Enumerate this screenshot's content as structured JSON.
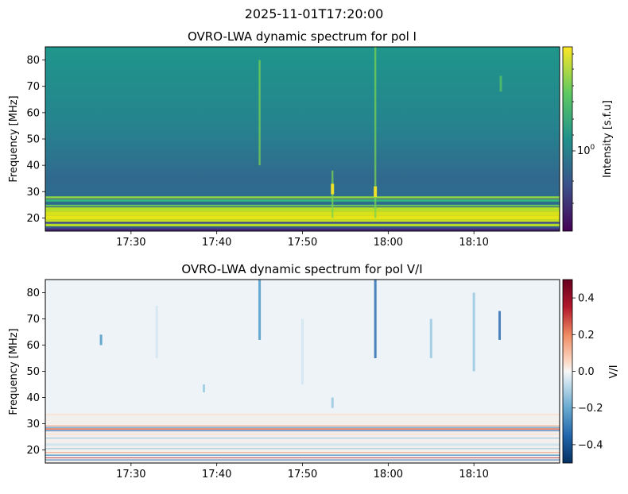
{
  "figure_title": "2025-11-01T17:20:00",
  "chart_data": [
    {
      "type": "heatmap",
      "title": "OVRO-LWA dynamic spectrum for pol I",
      "xlabel": "",
      "ylabel": "Frequency [MHz]",
      "x_range": [
        "17:20:00",
        "18:20:00"
      ],
      "x_ticks": [
        "17:30",
        "17:40",
        "17:50",
        "18:00",
        "18:10"
      ],
      "ylim": [
        15,
        85
      ],
      "y_ticks": [
        "20",
        "30",
        "40",
        "50",
        "60",
        "70",
        "80"
      ],
      "colorbar": {
        "label": "Intensity [s.f.u]",
        "scale": "log",
        "colormap": "viridis",
        "ticks": [
          "10^0"
        ]
      },
      "features": {
        "bright_bands_mhz": [
          [
            15,
            28
          ]
        ],
        "bursts": [
          {
            "time": "17:53:30",
            "freq_range_mhz": [
              20,
              38
            ]
          },
          {
            "time": "17:58:30",
            "freq_range_mhz": [
              20,
              85
            ]
          },
          {
            "time": "17:45:00",
            "freq_range_mhz": [
              40,
              80
            ]
          }
        ]
      }
    },
    {
      "type": "heatmap",
      "title": "OVRO-LWA dynamic spectrum for pol V/I",
      "xlabel": "",
      "ylabel": "Frequency [MHz]",
      "x_range": [
        "17:20:00",
        "18:20:00"
      ],
      "x_ticks": [
        "17:30",
        "17:40",
        "17:50",
        "18:00",
        "18:10"
      ],
      "ylim": [
        15,
        85
      ],
      "y_ticks": [
        "20",
        "30",
        "40",
        "50",
        "60",
        "70",
        "80"
      ],
      "colorbar": {
        "label": "V/I",
        "scale": "linear",
        "colormap": "RdBu_r",
        "range": [
          -0.5,
          0.5
        ],
        "ticks": [
          "0.4",
          "0.2",
          "0.0",
          "−0.2",
          "−0.4"
        ]
      }
    }
  ]
}
